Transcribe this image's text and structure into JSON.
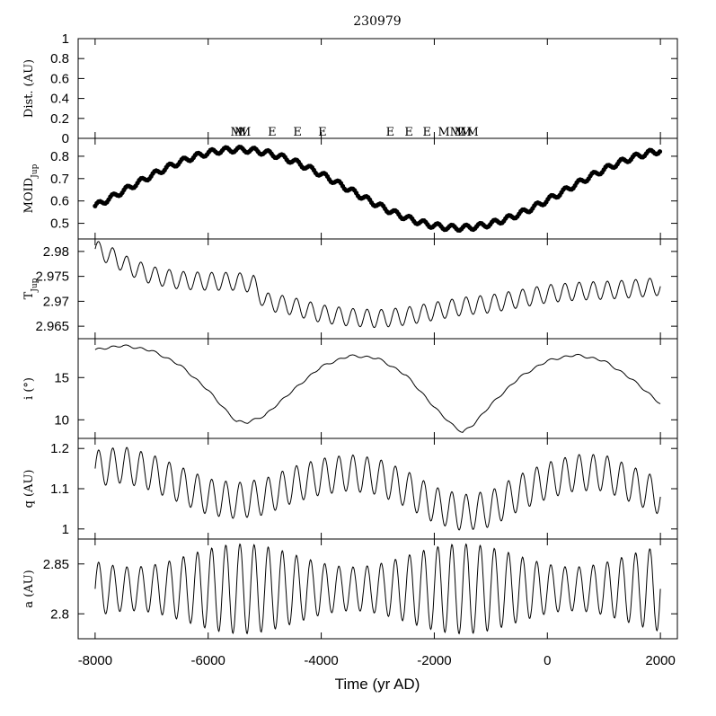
{
  "chart_data": {
    "type": "line",
    "title": "230979",
    "xlabel": "Time (yr AD)",
    "xlim": [
      -8300,
      2300
    ],
    "xticks": [
      -8000,
      -6000,
      -4000,
      -2000,
      0,
      2000
    ],
    "xtick_labels": [
      "-8000",
      "-6000",
      "-4000",
      "-2000",
      "0",
      "2000"
    ],
    "panels": [
      {
        "id": "dist",
        "ylabel": "Dist. (AU)",
        "ylim": [
          0,
          1
        ],
        "yticks": [
          0,
          0.2,
          0.4,
          0.6,
          0.8,
          1
        ],
        "ytick_labels": [
          "0",
          "0.2",
          "0.4",
          "0.6",
          "0.8",
          "1"
        ],
        "series": []
      },
      {
        "id": "moid",
        "ylabel": "MOID",
        "ylabel_sub": "Jup",
        "ylim": [
          0.43,
          0.88
        ],
        "yticks": [
          0.5,
          0.6,
          0.7,
          0.8
        ],
        "ytick_labels": [
          "0.5",
          "0.6",
          "0.7",
          "0.8"
        ],
        "style": "dots",
        "model": {
          "mean": 0.655,
          "amp": 0.175,
          "period": 7800,
          "ref": -5480,
          "osc_amp": 0.012,
          "osc_period": 250,
          "step": 30
        }
      },
      {
        "id": "tjup",
        "ylabel": "T",
        "ylabel_sub": "Jup",
        "ylim": [
          2.9625,
          2.9825
        ],
        "yticks": [
          2.965,
          2.97,
          2.975,
          2.98
        ],
        "ytick_labels": [
          "2.965",
          "2.97",
          "2.975",
          "2.98"
        ],
        "style": "line",
        "points": [
          [
            -8000,
            2.9805
          ],
          [
            -7700,
            2.979
          ],
          [
            -7400,
            2.977
          ],
          [
            -7000,
            2.9752
          ],
          [
            -6500,
            2.9742
          ],
          [
            -6000,
            2.974
          ],
          [
            -5500,
            2.974
          ],
          [
            -5200,
            2.9735
          ],
          [
            -5000,
            2.97
          ],
          [
            -4500,
            2.969
          ],
          [
            -4000,
            2.9675
          ],
          [
            -3500,
            2.9668
          ],
          [
            -3000,
            2.9665
          ],
          [
            -2500,
            2.967
          ],
          [
            -2000,
            2.968
          ],
          [
            -1500,
            2.969
          ],
          [
            -1000,
            2.9695
          ],
          [
            -500,
            2.9705
          ],
          [
            0,
            2.9715
          ],
          [
            500,
            2.972
          ],
          [
            1000,
            2.9722
          ],
          [
            1500,
            2.9725
          ],
          [
            2000,
            2.973
          ]
        ],
        "osc_amp": 0.0018,
        "osc_period": 250
      },
      {
        "id": "incl",
        "ylabel": "i (°)",
        "ylim": [
          7.8,
          19.6
        ],
        "yticks": [
          10,
          15
        ],
        "ytick_labels": [
          "10",
          "15"
        ],
        "style": "line",
        "points": [
          [
            -8000,
            18.3
          ],
          [
            -7500,
            18.8
          ],
          [
            -7000,
            18.2
          ],
          [
            -6500,
            16.5
          ],
          [
            -6000,
            13.5
          ],
          [
            -5700,
            11.2
          ],
          [
            -5500,
            9.8
          ],
          [
            -5300,
            9.7
          ],
          [
            -5000,
            10.5
          ],
          [
            -4500,
            13.5
          ],
          [
            -4000,
            16.3
          ],
          [
            -3500,
            17.6
          ],
          [
            -3000,
            17.3
          ],
          [
            -2500,
            15.3
          ],
          [
            -2000,
            11.5
          ],
          [
            -1700,
            9.5
          ],
          [
            -1500,
            8.5
          ],
          [
            -1300,
            9.5
          ],
          [
            -1000,
            11.8
          ],
          [
            -500,
            15.0
          ],
          [
            0,
            17.0
          ],
          [
            500,
            17.7
          ],
          [
            1000,
            17.0
          ],
          [
            1500,
            14.8
          ],
          [
            2000,
            11.9
          ]
        ],
        "osc_amp": 0.12,
        "osc_period": 250
      },
      {
        "id": "q",
        "ylabel": "q (AU)",
        "ylim": [
          0.975,
          1.225
        ],
        "yticks": [
          1,
          1.1,
          1.2
        ],
        "ytick_labels": [
          "1",
          "1.1",
          "1.2"
        ],
        "style": "line",
        "points": [
          [
            -8000,
            1.15
          ],
          [
            -7500,
            1.16
          ],
          [
            -7000,
            1.14
          ],
          [
            -6500,
            1.11
          ],
          [
            -6000,
            1.08
          ],
          [
            -5500,
            1.07
          ],
          [
            -5000,
            1.08
          ],
          [
            -4500,
            1.11
          ],
          [
            -4000,
            1.13
          ],
          [
            -3500,
            1.14
          ],
          [
            -3000,
            1.13
          ],
          [
            -2500,
            1.1
          ],
          [
            -2000,
            1.06
          ],
          [
            -1500,
            1.04
          ],
          [
            -1000,
            1.05
          ],
          [
            -500,
            1.09
          ],
          [
            0,
            1.12
          ],
          [
            500,
            1.14
          ],
          [
            1000,
            1.14
          ],
          [
            1500,
            1.11
          ],
          [
            2000,
            1.08
          ]
        ],
        "osc_amp": 0.045,
        "osc_period": 250
      },
      {
        "id": "a",
        "ylabel": "a (AU)",
        "ylim": [
          2.775,
          2.875
        ],
        "yticks": [
          2.8,
          2.85
        ],
        "ytick_labels": [
          "2.8",
          "2.85"
        ],
        "style": "line",
        "mean": 2.825,
        "osc_amp_min": 0.022,
        "osc_amp_max": 0.045,
        "osc_period": 250
      }
    ],
    "encounters": [
      {
        "label": "M",
        "x": -5500
      },
      {
        "label": "M",
        "x": -5430
      },
      {
        "label": "M",
        "x": -5350
      },
      {
        "label": "E",
        "x": -4870
      },
      {
        "label": "E",
        "x": -4420
      },
      {
        "label": "E",
        "x": -3980
      },
      {
        "label": "E",
        "x": -2780
      },
      {
        "label": "E",
        "x": -2450
      },
      {
        "label": "E",
        "x": -2130
      },
      {
        "label": "M",
        "x": -1830
      },
      {
        "label": "M",
        "x": -1620
      },
      {
        "label": "M",
        "x": -1540
      },
      {
        "label": "M",
        "x": -1440
      },
      {
        "label": "M",
        "x": -1320
      }
    ]
  }
}
